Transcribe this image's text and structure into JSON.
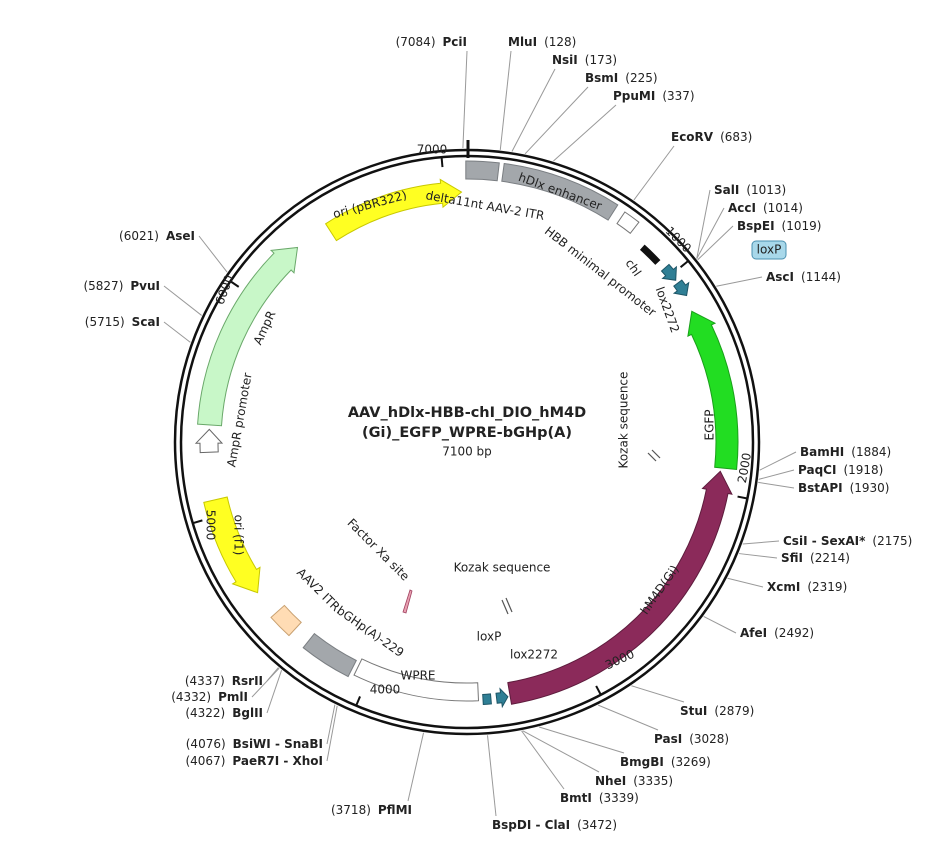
{
  "plasmid": {
    "title_lines": [
      "AAV_hDlx-HBB-chI_DIO_hM4D",
      "(Gi)_EGFP_WPRE-bGHp(A)"
    ],
    "size": "7100 bp",
    "ruler": [
      "1000",
      "2000",
      "3000",
      "4000",
      "5000",
      "6000",
      "7000"
    ],
    "features": [
      {
        "label": "delta11nt AAV-2 ITR"
      },
      {
        "label": "hDlx enhancer"
      },
      {
        "label": "HBB minimal promoter"
      },
      {
        "label": "chI"
      },
      {
        "label": "loxP"
      },
      {
        "label": "lox2272"
      },
      {
        "label": "EGFP"
      },
      {
        "label": "Kozak sequence"
      },
      {
        "label": "hM4D(Gi)"
      },
      {
        "label": "Kozak sequence"
      },
      {
        "label": "lox2272"
      },
      {
        "label": "loxP"
      },
      {
        "label": "WPRE"
      },
      {
        "label": "bGHp(A)-229"
      },
      {
        "label": "AAV2 ITR"
      },
      {
        "label": "Factor Xa site"
      },
      {
        "label": "ori (f1)"
      },
      {
        "label": "AmpR promoter"
      },
      {
        "label": "AmpR"
      },
      {
        "label": "ori (pBR322)"
      }
    ],
    "sites": [
      {
        "name": "PciI",
        "position": "(7084)"
      },
      {
        "name": "MluI",
        "position": "(128)"
      },
      {
        "name": "NsiI",
        "position": "(173)"
      },
      {
        "name": "BsmI",
        "position": "(225)"
      },
      {
        "name": "PpuMI",
        "position": "(337)"
      },
      {
        "name": "EcoRV",
        "position": "(683)"
      },
      {
        "name": "SalI",
        "position": "(1013)"
      },
      {
        "name": "AccI",
        "position": "(1014)"
      },
      {
        "name": "BspEI",
        "position": "(1019)"
      },
      {
        "name": "AscI",
        "position": "(1144)"
      },
      {
        "name": "BamHI",
        "position": "(1884)"
      },
      {
        "name": "PaqCI",
        "position": "(1918)"
      },
      {
        "name": "BstAPI",
        "position": "(1930)"
      },
      {
        "name": "CsiI - SexAI*",
        "position": "(2175)"
      },
      {
        "name": "SfiI",
        "position": "(2214)"
      },
      {
        "name": "XcmI",
        "position": "(2319)"
      },
      {
        "name": "AfeI",
        "position": "(2492)"
      },
      {
        "name": "StuI",
        "position": "(2879)"
      },
      {
        "name": "PasI",
        "position": "(3028)"
      },
      {
        "name": "BmgBI",
        "position": "(3269)"
      },
      {
        "name": "NheI",
        "position": "(3335)"
      },
      {
        "name": "BmtI",
        "position": "(3339)"
      },
      {
        "name": "BspDI - ClaI",
        "position": "(3472)"
      },
      {
        "name": "PflMI",
        "position": "(3718)"
      },
      {
        "name": "RsrII",
        "position": "(4337)"
      },
      {
        "name": "PmlI",
        "position": "(4332)"
      },
      {
        "name": "BglII",
        "position": "(4322)"
      },
      {
        "name": "BsiWI - SnaBI",
        "position": "(4076)"
      },
      {
        "name": "PaeR7I - XhoI",
        "position": "(4067)"
      },
      {
        "name": "ScaI",
        "position": "(5715)"
      },
      {
        "name": "PvuI",
        "position": "(5827)"
      },
      {
        "name": "AseI",
        "position": "(6021)"
      }
    ]
  }
}
